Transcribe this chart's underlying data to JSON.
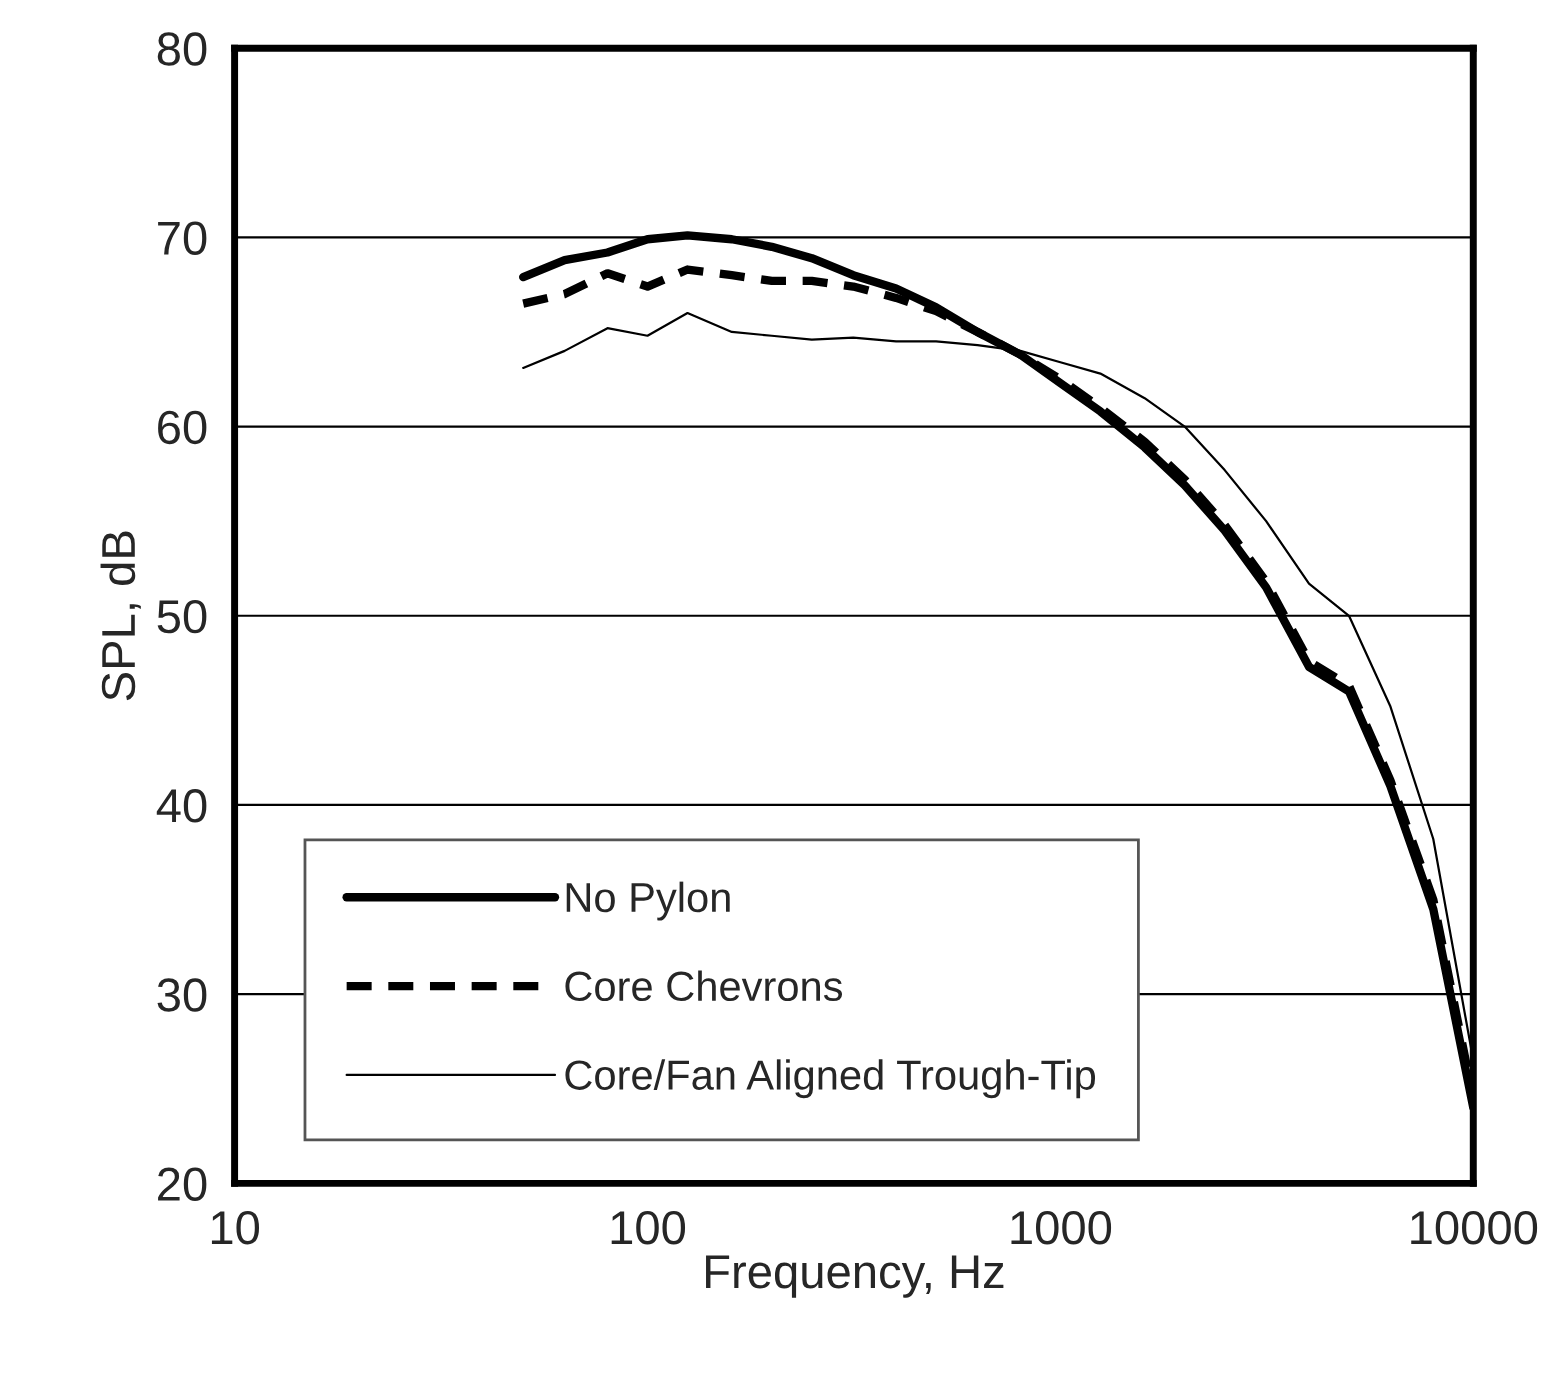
{
  "chart_data": {
    "type": "line",
    "xlabel": "Frequency, Hz",
    "ylabel": "SPL, dB",
    "log": "x",
    "xlim": [
      10,
      10000
    ],
    "xticks": [
      10,
      100,
      1000,
      10000
    ],
    "ylim": [
      20,
      80
    ],
    "yticks": [
      20,
      30,
      40,
      50,
      60,
      70,
      80
    ],
    "x": [
      50,
      63,
      80,
      100,
      125,
      160,
      200,
      250,
      315,
      400,
      500,
      630,
      800,
      1000,
      1250,
      1600,
      2000,
      2500,
      3150,
      4000,
      5000,
      6300,
      8000,
      10000
    ],
    "grid": "y",
    "legend": "bottom left",
    "marker": "none",
    "series": [
      {
        "name": "No Pylon",
        "color": "#000000",
        "line_style": "solid",
        "values": [
          67.9,
          68.8,
          69.2,
          69.9,
          70.1,
          69.9,
          69.5,
          68.9,
          68.0,
          67.3,
          66.3,
          65.0,
          63.8,
          62.3,
          60.8,
          58.9,
          56.9,
          54.5,
          51.5,
          47.3,
          46.0,
          41.0,
          34.5,
          24.0
        ]
      },
      {
        "name": "Core Chevrons",
        "color": "#000000",
        "line_style": "dashed",
        "values": [
          66.5,
          67.0,
          68.1,
          67.4,
          68.3,
          68.0,
          67.7,
          67.7,
          67.4,
          66.8,
          66.1,
          65.0,
          63.8,
          62.5,
          61.0,
          59.2,
          57.2,
          54.8,
          51.8,
          47.6,
          46.3,
          41.3,
          35.0,
          24.5
        ]
      },
      {
        "name": "Core/Fan Aligned Trough-Tip",
        "color": "#000000",
        "line_style": "solid",
        "values": [
          63.1,
          64.0,
          65.2,
          64.8,
          66.0,
          65.0,
          64.8,
          64.6,
          64.7,
          64.5,
          64.5,
          64.3,
          64.0,
          63.4,
          62.8,
          61.5,
          60.0,
          57.7,
          55.0,
          51.7,
          50.0,
          45.2,
          38.2,
          26.5
        ]
      }
    ]
  }
}
